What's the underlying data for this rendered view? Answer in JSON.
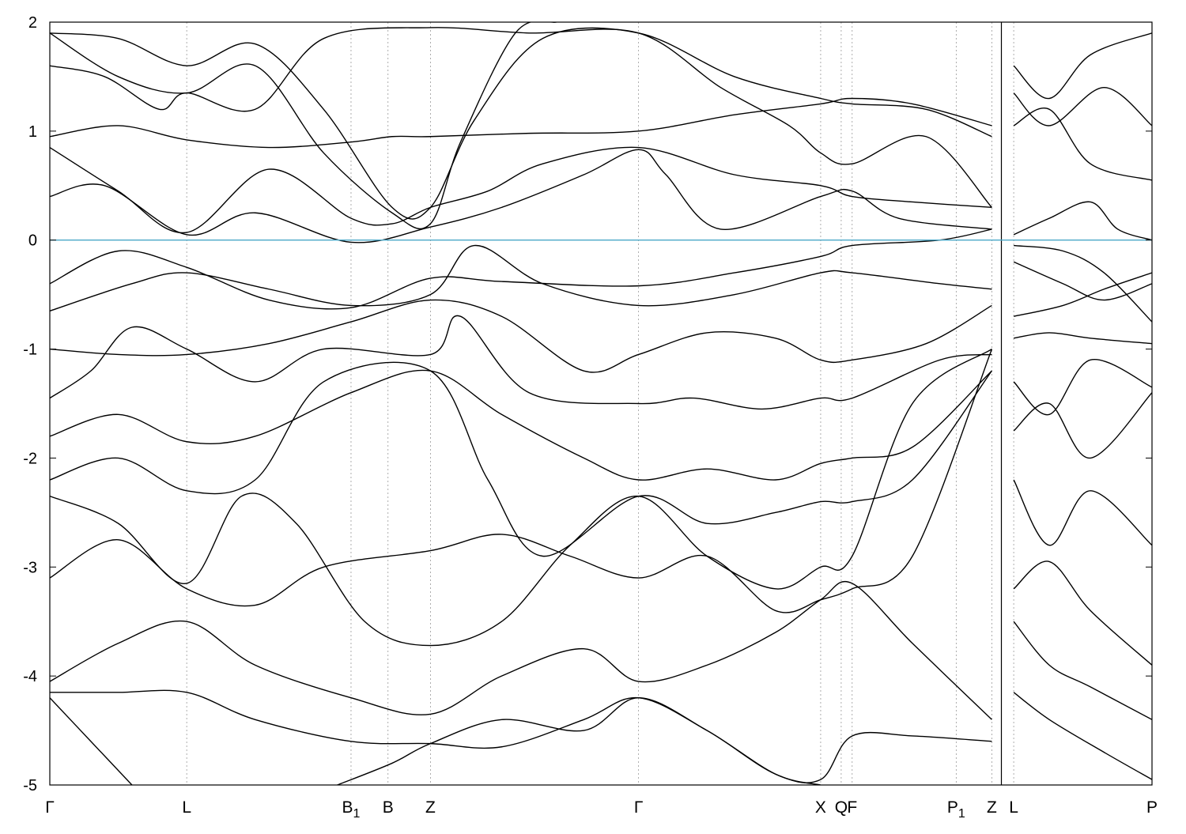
{
  "chart_data": {
    "type": "line",
    "title": "",
    "xlabel": "",
    "ylabel": "",
    "ylim": [
      -5,
      2
    ],
    "yticks": [
      2,
      1,
      0,
      -1,
      -2,
      -3,
      -4,
      -5
    ],
    "grid": "vertical dashed lines at high-symmetry points",
    "fermi_level": 0,
    "kpoints": [
      {
        "label": "Γ",
        "sub": "",
        "k": 0.0
      },
      {
        "label": "L",
        "sub": "",
        "k": 1.0
      },
      {
        "label": "B",
        "sub": "1",
        "k": 2.2
      },
      {
        "label": "B",
        "sub": "",
        "k": 2.47
      },
      {
        "label": "Z",
        "sub": "",
        "k": 2.78
      },
      {
        "label": "Γ",
        "sub": "",
        "k": 4.3
      },
      {
        "label": "X",
        "sub": "",
        "k": 5.63
      },
      {
        "label": "Q",
        "sub": "",
        "k": 5.78
      },
      {
        "label": "F",
        "sub": "",
        "k": 5.86
      },
      {
        "label": "P",
        "sub": "1",
        "k": 6.62
      },
      {
        "label": "Z",
        "sub": "",
        "k": 6.88
      },
      {
        "label": "L",
        "sub": "",
        "k": 7.04
      },
      {
        "label": "P",
        "sub": "",
        "k": 8.05
      }
    ],
    "segment_break_k": 6.95,
    "k_max": 8.05,
    "colors": {
      "bands": "#000000",
      "fermi": "#4aa8c8",
      "grid": "#999999",
      "axis": "#000000"
    },
    "series": [
      {
        "x": [
          0,
          0.5,
          1.0,
          1.6,
          2.2,
          2.5,
          2.78,
          3.5,
          4.3,
          5.0,
          5.63,
          5.86,
          6.3,
          6.88
        ],
        "y": [
          0.95,
          1.05,
          0.92,
          0.85,
          0.9,
          0.95,
          0.95,
          0.98,
          1.0,
          1.15,
          1.25,
          1.3,
          1.25,
          1.05
        ]
      },
      {
        "x": [
          0,
          0.5,
          1.0,
          1.6,
          2.2,
          2.5,
          2.78,
          3.2,
          3.6,
          4.3,
          5.0,
          5.63,
          5.86,
          6.3,
          6.88
        ],
        "y": [
          0.85,
          0.45,
          0.07,
          0.65,
          0.2,
          0.15,
          0.3,
          0.45,
          0.7,
          0.85,
          0.6,
          0.5,
          0.4,
          0.35,
          0.3
        ]
      },
      {
        "x": [
          0,
          0.4,
          1.0,
          1.5,
          2.2,
          2.78,
          3.3,
          3.9,
          4.3,
          4.5,
          4.9,
          5.63,
          5.86,
          6.2,
          6.88
        ],
        "y": [
          0.4,
          0.5,
          0.05,
          0.25,
          -0.02,
          0.12,
          0.3,
          0.6,
          0.83,
          0.6,
          0.1,
          0.4,
          0.45,
          0.2,
          0.1
        ]
      },
      {
        "x": [
          0,
          0.5,
          1.0,
          1.6,
          2.2,
          2.78,
          3.3,
          4.3,
          5.0,
          5.63,
          5.86,
          6.5,
          6.88
        ],
        "y": [
          -0.4,
          -0.1,
          -0.25,
          -0.55,
          -0.62,
          -0.35,
          -0.38,
          -0.42,
          -0.3,
          -0.15,
          -0.05,
          0.0,
          0.1
        ]
      },
      {
        "x": [
          0,
          0.6,
          1.0,
          1.6,
          2.2,
          2.78,
          3.1,
          3.6,
          4.3,
          5.0,
          5.63,
          5.86,
          6.5,
          6.88
        ],
        "y": [
          -0.65,
          -0.4,
          -0.3,
          -0.45,
          -0.6,
          -0.5,
          -0.05,
          -0.4,
          -0.6,
          -0.5,
          -0.3,
          -0.3,
          -0.4,
          -0.45
        ]
      },
      {
        "x": [
          0,
          0.3,
          0.6,
          1.0,
          1.5,
          2.0,
          2.78,
          3.0,
          3.5,
          4.3,
          4.7,
          5.2,
          5.63,
          5.86,
          6.5,
          6.88
        ],
        "y": [
          -1.45,
          -1.2,
          -0.8,
          -1.0,
          -1.3,
          -1.0,
          -1.05,
          -0.7,
          -1.4,
          -1.5,
          -1.45,
          -1.55,
          -1.45,
          -1.45,
          -1.1,
          -1.05
        ]
      },
      {
        "x": [
          0,
          0.5,
          1.0,
          1.6,
          2.2,
          2.78,
          3.3,
          3.9,
          4.3,
          4.8,
          5.3,
          5.63,
          5.86,
          6.4,
          6.88
        ],
        "y": [
          -1.0,
          -1.05,
          -1.05,
          -0.95,
          -0.75,
          -0.55,
          -0.7,
          -1.2,
          -1.05,
          -0.85,
          -0.9,
          -1.1,
          -1.1,
          -0.95,
          -0.6
        ]
      },
      {
        "x": [
          0,
          0.5,
          1.0,
          1.5,
          2.2,
          2.78,
          3.3,
          3.9,
          4.3,
          4.8,
          5.3,
          5.63,
          5.86,
          6.3,
          6.88
        ],
        "y": [
          -1.8,
          -1.6,
          -1.85,
          -1.8,
          -1.4,
          -1.2,
          -1.6,
          -2.0,
          -2.2,
          -2.1,
          -2.2,
          -2.05,
          -2.0,
          -1.9,
          -1.2
        ]
      },
      {
        "x": [
          0,
          0.5,
          1.0,
          1.5,
          2.0,
          2.78,
          3.2,
          3.6,
          4.3,
          4.8,
          5.3,
          5.63,
          5.86,
          6.3,
          6.88
        ],
        "y": [
          -2.2,
          -2.0,
          -2.3,
          -2.2,
          -1.3,
          -1.2,
          -2.2,
          -2.9,
          -2.35,
          -2.6,
          -2.5,
          -2.4,
          -2.4,
          -2.2,
          -1.2
        ]
      },
      {
        "x": [
          0,
          0.5,
          1.0,
          1.4,
          1.8,
          2.3,
          2.78,
          3.3,
          3.8,
          4.3,
          4.8,
          5.3,
          5.63,
          5.86,
          6.3,
          6.88
        ],
        "y": [
          -2.35,
          -2.6,
          -3.15,
          -2.35,
          -2.6,
          -3.5,
          -3.72,
          -3.5,
          -2.8,
          -2.35,
          -2.9,
          -3.2,
          -3.0,
          -2.9,
          -1.5,
          -1.0
        ]
      },
      {
        "x": [
          0,
          0.5,
          1.0,
          1.5,
          2.0,
          2.78,
          3.3,
          3.8,
          4.3,
          4.8,
          5.3,
          5.63,
          5.86,
          6.3,
          6.88
        ],
        "y": [
          -3.1,
          -2.75,
          -3.2,
          -3.35,
          -3.0,
          -2.85,
          -2.7,
          -2.9,
          -3.1,
          -2.9,
          -3.4,
          -3.3,
          -3.2,
          -2.9,
          -1.0
        ]
      },
      {
        "x": [
          0,
          0.5,
          1.0,
          1.5,
          2.2,
          2.78,
          3.3,
          3.9,
          4.3,
          4.8,
          5.3,
          5.63,
          5.86,
          6.3,
          6.88
        ],
        "y": [
          -4.05,
          -3.7,
          -3.5,
          -3.9,
          -4.2,
          -4.35,
          -4.0,
          -3.75,
          -4.05,
          -3.9,
          -3.6,
          -3.3,
          -3.15,
          -3.7,
          -4.4
        ]
      },
      {
        "x": [
          0,
          0.5,
          1.0,
          1.5,
          2.2,
          2.78,
          3.3,
          3.9,
          4.3,
          4.8,
          5.3,
          5.63,
          5.86,
          6.3,
          6.88
        ],
        "y": [
          -4.15,
          -4.15,
          -4.15,
          -4.4,
          -4.6,
          -4.62,
          -4.65,
          -4.4,
          -4.2,
          -4.5,
          -4.9,
          -4.95,
          -4.55,
          -4.55,
          -4.6
        ]
      },
      {
        "x": [
          0,
          0.3,
          0.6
        ],
        "y": [
          -4.2,
          -4.6,
          -5.0
        ]
      },
      {
        "x": [
          2.1,
          2.5,
          2.78,
          3.3,
          3.9,
          4.3,
          4.8,
          5.3,
          5.63
        ],
        "y": [
          -5.0,
          -4.8,
          -4.62,
          -4.4,
          -4.5,
          -4.2,
          -4.5,
          -4.9,
          -5.0
        ]
      },
      {
        "x": [
          0,
          0.5,
          1.0,
          1.5,
          2.0,
          2.5,
          2.78,
          3.1,
          3.6,
          4.3,
          5.0,
          5.63,
          5.86,
          6.4,
          6.88
        ],
        "y": [
          1.9,
          1.85,
          1.6,
          1.8,
          1.2,
          0.3,
          0.3,
          1.1,
          1.85,
          1.9,
          1.5,
          1.3,
          1.25,
          1.2,
          0.95
        ]
      },
      {
        "x": [
          0,
          0.5,
          1.0,
          1.5,
          2.0,
          2.5,
          2.78,
          3.0,
          3.4,
          3.7
        ],
        "y": [
          1.9,
          1.5,
          1.35,
          1.6,
          0.8,
          0.25,
          0.15,
          0.9,
          1.9,
          2.0
        ]
      },
      {
        "x": [
          0,
          0.4,
          0.8,
          1.0,
          1.5,
          2.0,
          2.78,
          3.5,
          4.3,
          4.9,
          5.4,
          5.63,
          5.86,
          6.4,
          6.88
        ],
        "y": [
          1.6,
          1.5,
          1.2,
          1.35,
          1.2,
          1.85,
          1.95,
          1.9,
          1.9,
          1.4,
          1.05,
          0.8,
          0.7,
          0.95,
          0.3
        ]
      }
    ],
    "series_right": [
      {
        "x": [
          7.04,
          7.3,
          7.6,
          8.05
        ],
        "y": [
          1.6,
          1.3,
          1.7,
          1.9
        ]
      },
      {
        "x": [
          7.04,
          7.3,
          7.7,
          8.05
        ],
        "y": [
          1.35,
          1.05,
          1.4,
          1.05
        ]
      },
      {
        "x": [
          7.04,
          7.3,
          7.6,
          8.05
        ],
        "y": [
          1.05,
          1.2,
          0.7,
          0.55
        ]
      },
      {
        "x": [
          7.04,
          7.3,
          7.6,
          7.8,
          8.05
        ],
        "y": [
          0.05,
          0.2,
          0.35,
          0.1,
          0.0
        ]
      },
      {
        "x": [
          7.04,
          7.4,
          7.7,
          8.05
        ],
        "y": [
          -0.05,
          -0.1,
          -0.3,
          -0.75
        ]
      },
      {
        "x": [
          7.04,
          7.4,
          7.7,
          8.05
        ],
        "y": [
          -0.2,
          -0.4,
          -0.55,
          -0.4
        ]
      },
      {
        "x": [
          7.04,
          7.4,
          7.7,
          8.05
        ],
        "y": [
          -0.7,
          -0.6,
          -0.45,
          -0.3
        ]
      },
      {
        "x": [
          7.04,
          7.3,
          7.6,
          8.05
        ],
        "y": [
          -0.9,
          -0.85,
          -0.9,
          -0.95
        ]
      },
      {
        "x": [
          7.04,
          7.3,
          7.6,
          8.05
        ],
        "y": [
          -1.3,
          -1.6,
          -1.1,
          -1.35
        ]
      },
      {
        "x": [
          7.04,
          7.3,
          7.6,
          8.05
        ],
        "y": [
          -1.75,
          -1.5,
          -2.0,
          -1.4
        ]
      },
      {
        "x": [
          7.04,
          7.3,
          7.6,
          8.05
        ],
        "y": [
          -2.2,
          -2.8,
          -2.3,
          -2.8
        ]
      },
      {
        "x": [
          7.04,
          7.3,
          7.6,
          8.05
        ],
        "y": [
          -3.2,
          -2.95,
          -3.4,
          -3.9
        ]
      },
      {
        "x": [
          7.04,
          7.3,
          7.6,
          8.05
        ],
        "y": [
          -3.5,
          -3.9,
          -4.1,
          -4.4
        ]
      },
      {
        "x": [
          7.04,
          7.3,
          7.7,
          8.05
        ],
        "y": [
          -4.15,
          -4.4,
          -4.7,
          -4.95
        ]
      }
    ]
  }
}
